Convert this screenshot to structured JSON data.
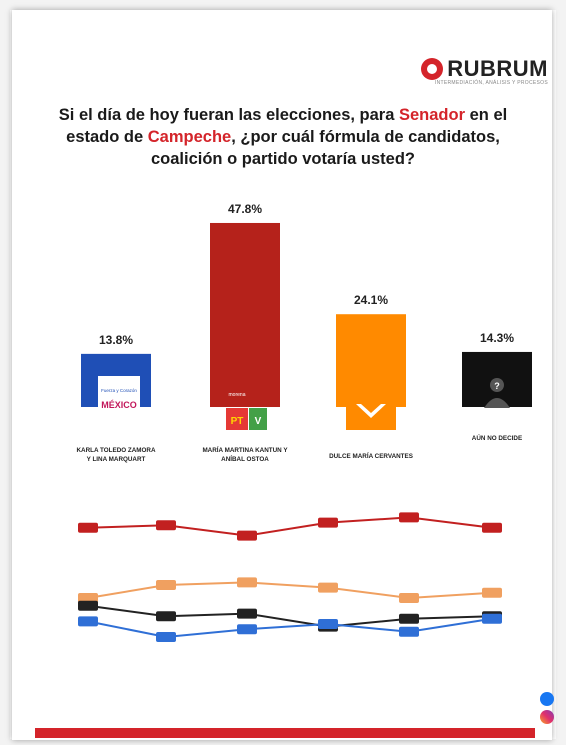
{
  "brand": {
    "name": "RUBRUM",
    "tagline": "INTERMEDIACIÓN, ANÁLISIS Y PROCESOS"
  },
  "question": {
    "part1": "Si el día de hoy fueran las elecciones, para ",
    "highlight1": "Senador",
    "part2": " en el estado de ",
    "highlight2": "Campeche",
    "part3": ", ¿por cuál fórmula de candidatos, coalición o partido votaría usted?"
  },
  "chart_data": [
    {
      "type": "bar",
      "categories": [
        "KARLA TOLEDO ZAMORA Y LINA MARQUART",
        "MARÍA MARTINA KANTUN Y ANÍBAL OSTOA",
        "DULCE MARÍA CERVANTES",
        "AÚN NO DECIDE"
      ],
      "values": [
        13.8,
        47.8,
        24.1,
        14.3
      ],
      "value_labels": [
        "13.8%",
        "47.8%",
        "24.1%",
        "14.3%"
      ],
      "colors": [
        "#1f4fb6",
        "#b5221b",
        "#ff8a00",
        "#111111"
      ],
      "party_marks": [
        "Fuerza y Corazón por México",
        "MORENA PT VERDE",
        "MC",
        "?"
      ]
    },
    {
      "type": "line",
      "x": [
        "",
        "",
        "",
        "",
        "",
        ""
      ],
      "series": [
        {
          "color": "#c22020",
          "values": [
            47,
            48,
            44,
            49,
            51,
            47
          ]
        },
        {
          "color": "#f0a060",
          "values": [
            20,
            25,
            26,
            24,
            20,
            22
          ]
        },
        {
          "color": "#222222",
          "values": [
            17,
            13,
            14,
            9,
            12,
            13
          ]
        },
        {
          "color": "#2f6fd6",
          "values": [
            11,
            5,
            8,
            10,
            7,
            12
          ]
        }
      ]
    }
  ],
  "footer": {
    "line1": "",
    "line2": ""
  },
  "social": {
    "facebook_icon": "facebook-icon",
    "instagram_icon": "instagram-icon"
  }
}
